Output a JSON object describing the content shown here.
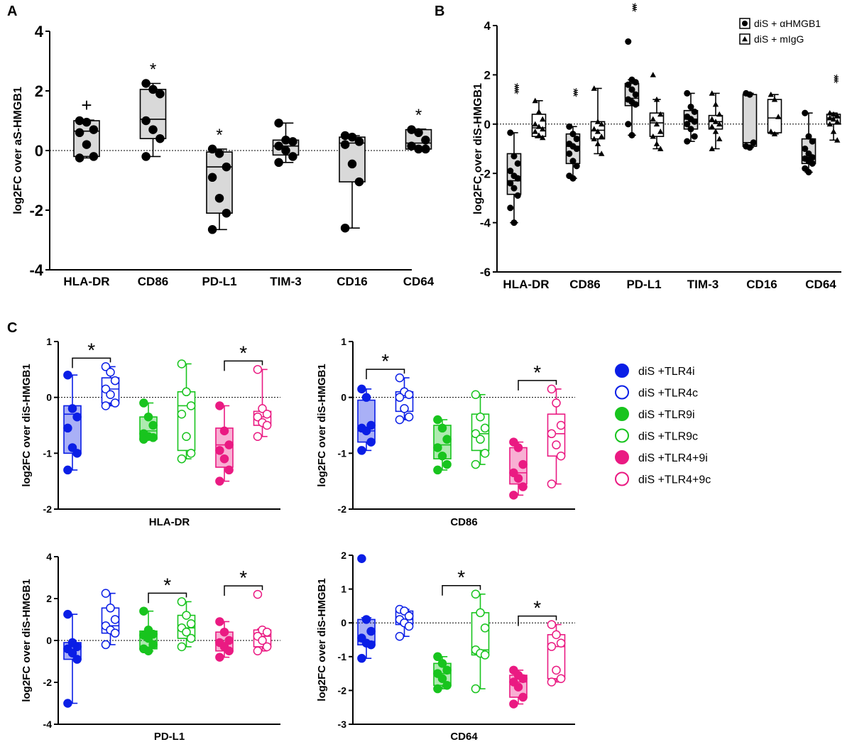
{
  "colors": {
    "blue": "#0a1ee6",
    "green": "#18c41e",
    "pink": "#ea1a82",
    "gray": "#d9d9d9",
    "black": "#000000"
  },
  "chart_data": [
    {
      "type": "box",
      "panel": "A",
      "ylabel": "log2FC over aS-HMGB1",
      "ylim": [
        -4,
        4
      ],
      "yticks": [
        -4,
        -2,
        0,
        2,
        4
      ],
      "yticklabels": [
        "-4",
        "-2",
        "0",
        "2",
        "4"
      ],
      "categories": [
        "HLA-DR",
        "CD86",
        "PD-L1",
        "TIM-3",
        "CD16",
        "CD64"
      ],
      "boxes": [
        {
          "cat": "HLA-DR",
          "min": -0.25,
          "q1": -0.2,
          "median": 0.65,
          "q3": 1.0,
          "max": 1.02,
          "points": [
            1.0,
            0.95,
            0.7,
            0.6,
            0.2,
            -0.2,
            -0.25
          ],
          "annotation": "+"
        },
        {
          "cat": "CD86",
          "min": -0.2,
          "q1": 0.4,
          "median": 1.05,
          "q3": 2.05,
          "max": 2.25,
          "points": [
            2.25,
            2.05,
            1.9,
            1.0,
            0.7,
            0.4,
            -0.2
          ],
          "annotation": "*"
        },
        {
          "cat": "PD-L1",
          "min": -2.65,
          "q1": -2.1,
          "median": -0.55,
          "q3": -0.05,
          "max": 0.05,
          "points": [
            0.05,
            -0.1,
            -0.55,
            -0.9,
            -1.6,
            -2.1,
            -2.65
          ],
          "annotation": "*"
        },
        {
          "cat": "TIM-3",
          "min": -0.4,
          "q1": -0.15,
          "median": 0.15,
          "q3": 0.35,
          "max": 0.92,
          "points": [
            0.92,
            0.35,
            0.3,
            0.15,
            0.0,
            -0.2,
            -0.4
          ],
          "annotation": ""
        },
        {
          "cat": "CD16",
          "min": -2.6,
          "q1": -1.05,
          "median": 0.25,
          "q3": 0.45,
          "max": 0.5,
          "points": [
            0.5,
            0.45,
            0.3,
            0.2,
            -0.45,
            -1.05,
            -2.6
          ],
          "annotation": ""
        },
        {
          "cat": "CD64",
          "min": 0.05,
          "q1": 0.05,
          "median": 0.25,
          "q3": 0.7,
          "max": 0.72,
          "points": [
            0.7,
            0.6,
            0.35,
            0.15,
            0.05,
            0.05
          ],
          "annotation": "*"
        }
      ]
    },
    {
      "type": "box",
      "panel": "B",
      "ylabel": "log2FC over diS-HMGB1",
      "ylim": [
        -6,
        4
      ],
      "yticks": [
        -6,
        -4,
        -2,
        0,
        2,
        4
      ],
      "yticklabels": [
        "-6",
        "-4",
        "-2",
        "0",
        "2",
        "4"
      ],
      "categories": [
        "HLA-DR",
        "CD86",
        "PD-L1",
        "TIM-3",
        "CD16",
        "CD64"
      ],
      "legend": [
        "diS + αHMGB1",
        "diS + mIgG"
      ],
      "boxes": [
        {
          "cat": "HLA-DR",
          "series": "diS + αHMGB1",
          "min": -4.0,
          "q1": -2.85,
          "median": -2.3,
          "q3": -1.2,
          "max": -0.35,
          "points": [
            -0.35,
            -1.3,
            -1.6,
            -1.9,
            -2.1,
            -2.2,
            -2.4,
            -2.6,
            -2.9,
            -3.4,
            -4.0
          ],
          "annotation": "****"
        },
        {
          "cat": "HLA-DR",
          "series": "diS + mIgG",
          "min": -0.55,
          "q1": -0.5,
          "median": -0.15,
          "q3": 0.4,
          "max": 0.95,
          "points": [
            0.95,
            0.5,
            0.2,
            0.0,
            -0.1,
            -0.2,
            -0.3,
            -0.45,
            -0.55
          ],
          "annotation": ""
        },
        {
          "cat": "CD86",
          "series": "diS + αHMGB1",
          "min": -2.2,
          "q1": -1.6,
          "median": -0.9,
          "q3": -0.4,
          "max": -0.1,
          "points": [
            -0.1,
            -0.4,
            -0.6,
            -0.8,
            -0.9,
            -1.0,
            -1.2,
            -1.5,
            -1.7,
            -2.1,
            -2.2
          ],
          "annotation": "***"
        },
        {
          "cat": "CD86",
          "series": "diS + mIgG",
          "min": -1.2,
          "q1": -0.6,
          "median": -0.25,
          "q3": 0.1,
          "max": 1.45,
          "points": [
            1.45,
            0.1,
            0.0,
            -0.2,
            -0.3,
            -0.5,
            -0.6,
            -0.8,
            -1.2
          ],
          "annotation": ""
        },
        {
          "cat": "PD-L1",
          "series": "diS + αHMGB1",
          "min": -0.45,
          "q1": 0.75,
          "median": 1.05,
          "q3": 1.65,
          "max": 1.8,
          "points": [
            3.35,
            1.8,
            1.7,
            1.6,
            1.4,
            1.2,
            1.0,
            0.9,
            0.8,
            0.0,
            -0.45
          ],
          "annotation": "***"
        },
        {
          "cat": "PD-L1",
          "series": "diS + mIgG",
          "min": -1.0,
          "q1": -0.5,
          "median": 0.05,
          "q3": 0.45,
          "max": 1.0,
          "points": [
            2.0,
            1.0,
            0.4,
            0.2,
            0.0,
            -0.3,
            -0.5,
            -0.8,
            -1.0
          ],
          "annotation": ""
        },
        {
          "cat": "TIM-3",
          "series": "diS + αHMGB1",
          "min": -0.7,
          "q1": -0.2,
          "median": 0.2,
          "q3": 0.55,
          "max": 1.25,
          "points": [
            1.25,
            0.7,
            0.5,
            0.3,
            0.2,
            0.1,
            0.0,
            -0.2,
            -0.5,
            -0.7
          ],
          "annotation": ""
        },
        {
          "cat": "TIM-3",
          "series": "diS + mIgG",
          "min": -1.0,
          "q1": -0.2,
          "median": 0.1,
          "q3": 0.35,
          "max": 1.25,
          "points": [
            1.25,
            0.8,
            0.4,
            0.2,
            0.1,
            0.0,
            -0.1,
            -0.3,
            -0.6,
            -1.0
          ],
          "annotation": ""
        },
        {
          "cat": "CD16",
          "series": "diS + αHMGB1",
          "min": -0.95,
          "q1": -0.9,
          "median": -0.75,
          "q3": 1.2,
          "max": 1.25,
          "points": [
            1.25,
            1.2,
            -0.75,
            -0.9,
            -0.95
          ],
          "annotation": ""
        },
        {
          "cat": "CD16",
          "series": "diS + mIgG",
          "min": -0.4,
          "q1": -0.35,
          "median": 0.25,
          "q3": 1.0,
          "max": 1.2,
          "points": [
            1.2,
            1.0,
            0.3,
            -0.3,
            -0.4
          ],
          "annotation": ""
        },
        {
          "cat": "CD64",
          "series": "diS + αHMGB1",
          "min": -1.95,
          "q1": -1.6,
          "median": -1.35,
          "q3": -0.6,
          "max": 0.45,
          "points": [
            0.45,
            -0.5,
            -0.7,
            -1.0,
            -1.2,
            -1.35,
            -1.4,
            -1.5,
            -1.6,
            -1.8,
            -1.95
          ],
          "annotation": ""
        },
        {
          "cat": "CD64",
          "series": "diS + mIgG",
          "min": -0.65,
          "q1": 0.0,
          "median": 0.25,
          "q3": 0.4,
          "max": 0.45,
          "points": [
            0.45,
            0.4,
            0.35,
            0.25,
            0.2,
            0.1,
            0.0,
            -0.3,
            -0.65
          ],
          "annotation": "***"
        }
      ]
    },
    {
      "type": "box",
      "panel": "C",
      "subtitle": "HLA-DR",
      "ylabel": "log2FC over diS-HMGB1",
      "ylim": [
        -2,
        1
      ],
      "yticks": [
        -2,
        -1,
        0,
        1
      ],
      "yticklabels": [
        "-2",
        "-1",
        "0",
        "1"
      ],
      "groups": [
        {
          "series": "diS +TLR4i",
          "min": -1.3,
          "q1": -1.0,
          "median": -0.3,
          "q3": -0.15,
          "max": 0.4,
          "points": [
            0.4,
            -0.2,
            -0.35,
            -0.55,
            -0.9,
            -1.0,
            -1.3
          ]
        },
        {
          "series": "diS +TLR4c",
          "min": -0.15,
          "q1": -0.1,
          "median": 0.15,
          "q3": 0.35,
          "max": 0.55,
          "points": [
            0.55,
            0.45,
            0.3,
            0.15,
            0.05,
            -0.1,
            -0.15
          ]
        },
        {
          "series": "diS +TLR9i",
          "min": -0.75,
          "q1": -0.75,
          "median": -0.6,
          "q3": -0.35,
          "max": -0.1,
          "points": [
            -0.1,
            -0.35,
            -0.5,
            -0.65,
            -0.7,
            -0.72,
            -0.75
          ]
        },
        {
          "series": "diS +TLR9c",
          "min": -1.1,
          "q1": -0.95,
          "median": -0.15,
          "q3": 0.1,
          "max": 0.6,
          "points": [
            0.6,
            0.1,
            -0.15,
            -0.3,
            -0.7,
            -1.0,
            -1.1
          ]
        },
        {
          "series": "diS +TLR4+9i",
          "min": -1.5,
          "q1": -1.25,
          "median": -0.85,
          "q3": -0.55,
          "max": -0.15,
          "points": [
            -0.15,
            -0.6,
            -0.85,
            -0.95,
            -1.1,
            -1.3,
            -1.5
          ]
        },
        {
          "series": "diS +TLR4+9c",
          "min": -0.7,
          "q1": -0.5,
          "median": -0.35,
          "q3": -0.25,
          "max": 0.5,
          "points": [
            0.5,
            -0.2,
            -0.3,
            -0.35,
            -0.45,
            -0.5,
            -0.7
          ]
        }
      ],
      "significance": [
        {
          "from": 0,
          "to": 1,
          "label": "*"
        },
        {
          "from": 4,
          "to": 5,
          "label": "*"
        }
      ]
    },
    {
      "type": "box",
      "panel": "C",
      "subtitle": "CD86",
      "ylabel": "log2FC over diS-HMGB1",
      "ylim": [
        -2,
        1
      ],
      "yticks": [
        -2,
        -1,
        0,
        1
      ],
      "yticklabels": [
        "-2",
        "-1",
        "0",
        "1"
      ],
      "groups": [
        {
          "series": "diS +TLR4i",
          "min": -0.95,
          "q1": -0.8,
          "median": -0.6,
          "q3": -0.05,
          "max": 0.15,
          "points": [
            0.15,
            0.0,
            -0.5,
            -0.55,
            -0.6,
            -0.8,
            -0.95
          ]
        },
        {
          "series": "diS +TLR4c",
          "min": -0.4,
          "q1": -0.25,
          "median": 0.0,
          "q3": 0.1,
          "max": 0.35,
          "points": [
            0.35,
            0.1,
            0.05,
            0.0,
            -0.2,
            -0.35,
            -0.4
          ]
        },
        {
          "series": "diS +TLR9i",
          "min": -1.3,
          "q1": -1.1,
          "median": -0.85,
          "q3": -0.5,
          "max": -0.4,
          "points": [
            -0.4,
            -0.55,
            -0.75,
            -0.9,
            -1.05,
            -1.2,
            -1.3
          ]
        },
        {
          "series": "diS +TLR9c",
          "min": -1.2,
          "q1": -0.95,
          "median": -0.65,
          "q3": -0.3,
          "max": 0.05,
          "points": [
            0.05,
            -0.35,
            -0.55,
            -0.65,
            -0.75,
            -1.0,
            -1.2
          ]
        },
        {
          "series": "diS +TLR4+9i",
          "min": -1.75,
          "q1": -1.55,
          "median": -1.35,
          "q3": -0.9,
          "max": -0.8,
          "points": [
            -0.8,
            -0.9,
            -1.2,
            -1.35,
            -1.45,
            -1.6,
            -1.75
          ]
        },
        {
          "series": "diS +TLR4+9c",
          "min": -1.55,
          "q1": -1.05,
          "median": -0.65,
          "q3": -0.3,
          "max": 0.15,
          "points": [
            0.15,
            -0.1,
            -0.5,
            -0.65,
            -0.85,
            -1.05,
            -1.55
          ]
        }
      ],
      "significance": [
        {
          "from": 0,
          "to": 1,
          "label": "*"
        },
        {
          "from": 4,
          "to": 5,
          "label": "*"
        }
      ]
    },
    {
      "type": "box",
      "panel": "C",
      "subtitle": "PD-L1",
      "ylabel": "log2FC over diS-HMGB1",
      "ylim": [
        -4,
        4
      ],
      "yticks": [
        -4,
        -2,
        0,
        2,
        4
      ],
      "yticklabels": [
        "-4",
        "-2",
        "0",
        "2",
        "4"
      ],
      "groups": [
        {
          "series": "diS +TLR4i",
          "min": -3.0,
          "q1": -0.9,
          "median": -0.3,
          "q3": -0.1,
          "max": 1.25,
          "points": [
            1.25,
            -0.1,
            -0.3,
            -0.4,
            -0.6,
            -0.9,
            -3.0
          ]
        },
        {
          "series": "diS +TLR4c",
          "min": -0.2,
          "q1": 0.35,
          "median": 0.7,
          "q3": 1.55,
          "max": 2.25,
          "points": [
            2.25,
            1.55,
            1.0,
            0.7,
            0.5,
            0.35,
            -0.2
          ]
        },
        {
          "series": "diS +TLR9i",
          "min": -0.5,
          "q1": -0.4,
          "median": 0.25,
          "q3": 0.45,
          "max": 1.4,
          "points": [
            1.4,
            0.5,
            0.3,
            0.25,
            0.1,
            -0.2,
            -0.4,
            -0.5
          ]
        },
        {
          "series": "diS +TLR9c",
          "min": -0.3,
          "q1": 0.1,
          "median": 0.6,
          "q3": 1.2,
          "max": 1.85,
          "points": [
            1.85,
            1.2,
            0.8,
            0.6,
            0.4,
            0.1,
            -0.3
          ]
        },
        {
          "series": "diS +TLR4+9i",
          "min": -0.8,
          "q1": -0.5,
          "median": -0.1,
          "q3": 0.4,
          "max": 0.9,
          "points": [
            0.9,
            0.4,
            0.0,
            -0.1,
            -0.3,
            -0.5,
            -0.8
          ]
        },
        {
          "series": "diS +TLR4+9c",
          "min": -0.5,
          "q1": -0.3,
          "median": 0.2,
          "q3": 0.5,
          "max": 0.55,
          "points": [
            2.2,
            0.5,
            0.4,
            0.2,
            0.0,
            -0.3,
            -0.5
          ]
        }
      ],
      "significance": [
        {
          "from": 2,
          "to": 3,
          "label": "*"
        },
        {
          "from": 4,
          "to": 5,
          "label": "*"
        }
      ]
    },
    {
      "type": "box",
      "panel": "C",
      "subtitle": "CD64",
      "ylabel": "log2FC over diS-HMGB1",
      "ylim": [
        -3,
        2
      ],
      "yticks": [
        -3,
        -2,
        -1,
        0,
        1,
        2
      ],
      "yticklabels": [
        "-3",
        "-2",
        "-1",
        "0",
        "1",
        "2"
      ],
      "groups": [
        {
          "series": "diS +TLR4i",
          "min": -1.05,
          "q1": -0.65,
          "median": -0.55,
          "q3": 0.1,
          "max": 0.15,
          "points": [
            1.9,
            0.1,
            -0.25,
            -0.45,
            -0.6,
            -0.65,
            -1.05
          ]
        },
        {
          "series": "diS +TLR4c",
          "min": -0.4,
          "q1": -0.05,
          "median": 0.1,
          "q3": 0.35,
          "max": 0.4,
          "points": [
            0.4,
            0.35,
            0.2,
            0.1,
            0.0,
            -0.1,
            -0.4
          ]
        },
        {
          "series": "diS +TLR9i",
          "min": -1.95,
          "q1": -1.85,
          "median": -1.5,
          "q3": -1.2,
          "max": -1.0,
          "points": [
            -1.0,
            -1.2,
            -1.4,
            -1.5,
            -1.65,
            -1.85,
            -1.95
          ]
        },
        {
          "series": "diS +TLR9c",
          "min": -1.95,
          "q1": -0.95,
          "median": -0.8,
          "q3": 0.3,
          "max": 0.85,
          "points": [
            0.85,
            0.3,
            -0.15,
            -0.8,
            -0.9,
            -0.95,
            -1.95
          ]
        },
        {
          "series": "diS +TLR4+9i",
          "min": -2.4,
          "q1": -2.2,
          "median": -1.75,
          "q3": -1.55,
          "max": -1.4,
          "points": [
            -1.4,
            -1.55,
            -1.65,
            -1.75,
            -1.9,
            -2.2,
            -2.4
          ]
        },
        {
          "series": "diS +TLR4+9c",
          "min": -1.75,
          "q1": -1.65,
          "median": -0.7,
          "q3": -0.35,
          "max": -0.05,
          "points": [
            -0.05,
            -0.35,
            -0.6,
            -0.7,
            -1.4,
            -1.65,
            -1.75
          ]
        }
      ],
      "significance": [
        {
          "from": 2,
          "to": 3,
          "label": "*"
        },
        {
          "from": 4,
          "to": 5,
          "label": "*"
        }
      ]
    }
  ],
  "legend_C": [
    {
      "label": "diS +TLR4i",
      "color": "#0a1ee6",
      "filled": true
    },
    {
      "label": "diS +TLR4c",
      "color": "#0a1ee6",
      "filled": false
    },
    {
      "label": "diS +TLR9i",
      "color": "#18c41e",
      "filled": true
    },
    {
      "label": "diS +TLR9c",
      "color": "#18c41e",
      "filled": false
    },
    {
      "label": "diS +TLR4+9i",
      "color": "#ea1a82",
      "filled": true
    },
    {
      "label": "diS +TLR4+9c",
      "color": "#ea1a82",
      "filled": false
    }
  ],
  "panel_letters": [
    "A",
    "B",
    "C"
  ]
}
